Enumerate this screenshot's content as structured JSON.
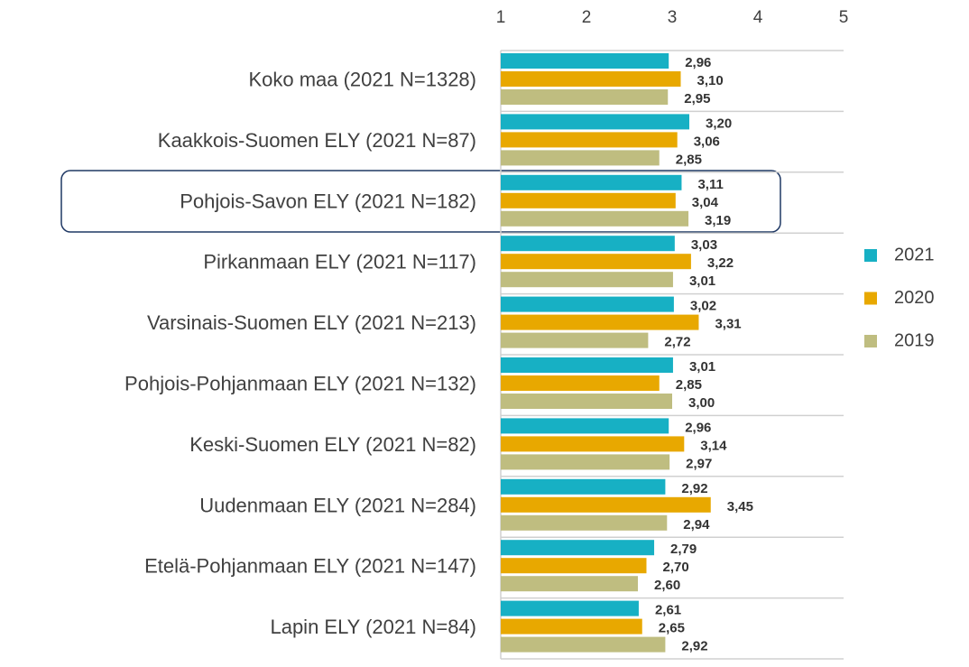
{
  "chart_data": {
    "type": "bar",
    "orientation": "horizontal",
    "categories": [
      "Koko maa (2021 N=1328)",
      "Kaakkois-Suomen ELY (2021 N=87)",
      "Pohjois-Savon ELY (2021 N=182)",
      "Pirkanmaan ELY (2021 N=117)",
      "Varsinais-Suomen ELY (2021 N=213)",
      "Pohjois-Pohjanmaan ELY (2021 N=132)",
      "Keski-Suomen ELY (2021 N=82)",
      "Uudenmaan ELY (2021 N=284)",
      "Etelä-Pohjanmaan ELY (2021 N=147)",
      "Lapin ELY (2021 N=84)"
    ],
    "series": [
      {
        "name": "2021",
        "color": "#17b0c4",
        "values": [
          2.96,
          3.2,
          3.11,
          3.03,
          3.02,
          3.01,
          2.96,
          2.92,
          2.79,
          2.61
        ],
        "value_labels": [
          "2,96",
          "3,20",
          "3,11",
          "3,03",
          "3,02",
          "3,01",
          "2,96",
          "2,92",
          "2,79",
          "2,61"
        ]
      },
      {
        "name": "2020",
        "color": "#e8a800",
        "values": [
          3.1,
          3.06,
          3.04,
          3.22,
          3.31,
          2.85,
          3.14,
          3.45,
          2.7,
          2.65
        ],
        "value_labels": [
          "3,10",
          "3,06",
          "3,04",
          "3,22",
          "3,31",
          "2,85",
          "3,14",
          "3,45",
          "2,70",
          "2,65"
        ]
      },
      {
        "name": "2019",
        "color": "#bfbd80",
        "values": [
          2.95,
          2.85,
          3.19,
          3.01,
          2.72,
          3.0,
          2.97,
          2.94,
          2.6,
          2.92
        ],
        "value_labels": [
          "2,95",
          "2,85",
          "3,19",
          "3,01",
          "2,72",
          "3,00",
          "2,97",
          "2,94",
          "2,60",
          "2,92"
        ]
      }
    ],
    "xlim": [
      1,
      5
    ],
    "xticks": [
      1,
      2,
      3,
      4,
      5
    ],
    "legend": "right"
  }
}
